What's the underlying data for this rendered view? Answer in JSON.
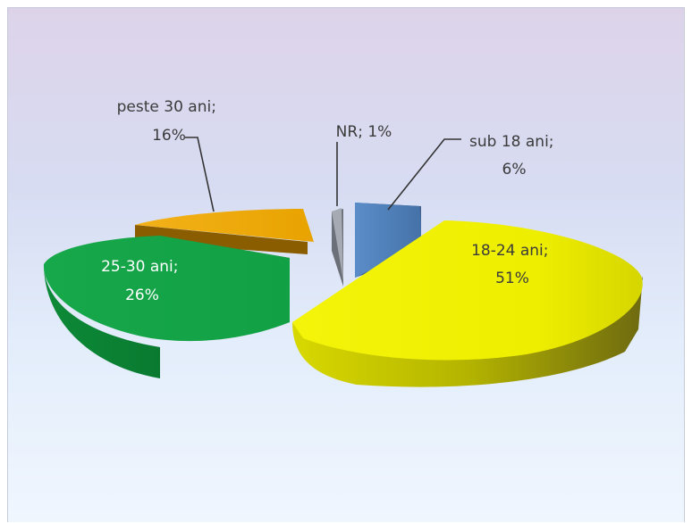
{
  "chart_data": {
    "type": "pie",
    "title": "",
    "legend": "none",
    "slices": [
      {
        "label": "sub 18 ani",
        "value": 6,
        "text_lines": [
          "sub 18 ani;",
          "6%"
        ],
        "color": "#4f81bd"
      },
      {
        "label": "18-24 ani",
        "value": 51,
        "text_lines": [
          "18-24 ani;",
          "51%"
        ],
        "color": "#f2f205"
      },
      {
        "label": "25-30 ani",
        "value": 26,
        "text_lines": [
          "25-30 ani;",
          "26%"
        ],
        "color": "#14a84a"
      },
      {
        "label": "peste 30 ani",
        "value": 16,
        "text_lines": [
          "peste 30 ani;",
          "16%"
        ],
        "color": "#f0ac00"
      },
      {
        "label": "NR",
        "value": 1,
        "text_lines": [
          "NR; 1%"
        ],
        "color": "#9fa5ad"
      }
    ]
  }
}
